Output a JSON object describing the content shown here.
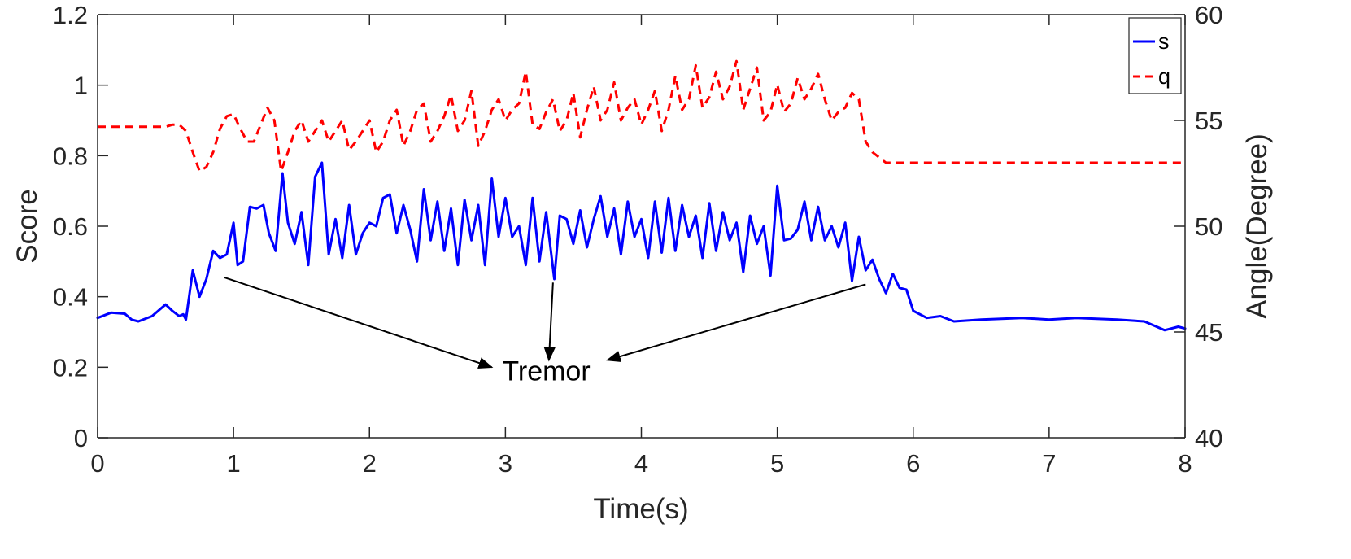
{
  "chart_data": {
    "type": "line",
    "xlabel": "Time(s)",
    "ylabel_left": "Score",
    "ylabel_right": "Angle(Degree)",
    "xlim": [
      0,
      8
    ],
    "ylim_left": [
      0,
      1.2
    ],
    "ylim_right": [
      40,
      60
    ],
    "x_ticks": [
      "0",
      "1",
      "2",
      "3",
      "4",
      "5",
      "6",
      "7",
      "8"
    ],
    "y_left_ticks": [
      "0",
      "0.2",
      "0.4",
      "0.6",
      "0.8",
      "1",
      "1.2"
    ],
    "y_right_ticks": [
      "40",
      "45",
      "50",
      "55",
      "60"
    ],
    "grid": false,
    "legend_position": "top-right",
    "series": [
      {
        "name": "s",
        "axis": "left",
        "color": "#0000ff",
        "style": "solid",
        "points": [
          [
            0.0,
            0.34
          ],
          [
            0.1,
            0.355
          ],
          [
            0.2,
            0.352
          ],
          [
            0.25,
            0.335
          ],
          [
            0.3,
            0.33
          ],
          [
            0.4,
            0.345
          ],
          [
            0.5,
            0.378
          ],
          [
            0.55,
            0.36
          ],
          [
            0.6,
            0.345
          ],
          [
            0.63,
            0.35
          ],
          [
            0.65,
            0.335
          ],
          [
            0.7,
            0.475
          ],
          [
            0.75,
            0.4
          ],
          [
            0.8,
            0.45
          ],
          [
            0.85,
            0.53
          ],
          [
            0.9,
            0.51
          ],
          [
            0.95,
            0.52
          ],
          [
            1.0,
            0.61
          ],
          [
            1.03,
            0.49
          ],
          [
            1.07,
            0.5
          ],
          [
            1.12,
            0.655
          ],
          [
            1.17,
            0.65
          ],
          [
            1.22,
            0.66
          ],
          [
            1.26,
            0.58
          ],
          [
            1.31,
            0.53
          ],
          [
            1.36,
            0.75
          ],
          [
            1.4,
            0.61
          ],
          [
            1.45,
            0.55
          ],
          [
            1.5,
            0.64
          ],
          [
            1.55,
            0.49
          ],
          [
            1.6,
            0.74
          ],
          [
            1.65,
            0.78
          ],
          [
            1.7,
            0.52
          ],
          [
            1.75,
            0.62
          ],
          [
            1.8,
            0.51
          ],
          [
            1.85,
            0.66
          ],
          [
            1.9,
            0.52
          ],
          [
            1.95,
            0.58
          ],
          [
            2.0,
            0.61
          ],
          [
            2.05,
            0.6
          ],
          [
            2.1,
            0.68
          ],
          [
            2.15,
            0.69
          ],
          [
            2.2,
            0.58
          ],
          [
            2.25,
            0.66
          ],
          [
            2.3,
            0.59
          ],
          [
            2.35,
            0.5
          ],
          [
            2.4,
            0.705
          ],
          [
            2.45,
            0.56
          ],
          [
            2.5,
            0.67
          ],
          [
            2.55,
            0.53
          ],
          [
            2.6,
            0.65
          ],
          [
            2.65,
            0.49
          ],
          [
            2.7,
            0.675
          ],
          [
            2.75,
            0.56
          ],
          [
            2.8,
            0.66
          ],
          [
            2.85,
            0.49
          ],
          [
            2.9,
            0.735
          ],
          [
            2.95,
            0.57
          ],
          [
            3.0,
            0.68
          ],
          [
            3.05,
            0.57
          ],
          [
            3.1,
            0.6
          ],
          [
            3.15,
            0.49
          ],
          [
            3.2,
            0.68
          ],
          [
            3.25,
            0.5
          ],
          [
            3.3,
            0.64
          ],
          [
            3.36,
            0.45
          ],
          [
            3.4,
            0.63
          ],
          [
            3.45,
            0.62
          ],
          [
            3.5,
            0.55
          ],
          [
            3.55,
            0.645
          ],
          [
            3.6,
            0.54
          ],
          [
            3.65,
            0.62
          ],
          [
            3.7,
            0.685
          ],
          [
            3.75,
            0.57
          ],
          [
            3.8,
            0.65
          ],
          [
            3.85,
            0.52
          ],
          [
            3.9,
            0.67
          ],
          [
            3.95,
            0.57
          ],
          [
            4.0,
            0.62
          ],
          [
            4.05,
            0.51
          ],
          [
            4.1,
            0.67
          ],
          [
            4.15,
            0.525
          ],
          [
            4.2,
            0.68
          ],
          [
            4.25,
            0.53
          ],
          [
            4.3,
            0.66
          ],
          [
            4.35,
            0.57
          ],
          [
            4.4,
            0.63
          ],
          [
            4.45,
            0.51
          ],
          [
            4.5,
            0.665
          ],
          [
            4.55,
            0.53
          ],
          [
            4.6,
            0.64
          ],
          [
            4.65,
            0.56
          ],
          [
            4.7,
            0.61
          ],
          [
            4.75,
            0.47
          ],
          [
            4.8,
            0.63
          ],
          [
            4.85,
            0.55
          ],
          [
            4.9,
            0.6
          ],
          [
            4.95,
            0.46
          ],
          [
            5.0,
            0.715
          ],
          [
            5.05,
            0.56
          ],
          [
            5.1,
            0.565
          ],
          [
            5.15,
            0.59
          ],
          [
            5.2,
            0.67
          ],
          [
            5.25,
            0.56
          ],
          [
            5.3,
            0.655
          ],
          [
            5.35,
            0.56
          ],
          [
            5.4,
            0.6
          ],
          [
            5.45,
            0.54
          ],
          [
            5.5,
            0.61
          ],
          [
            5.55,
            0.445
          ],
          [
            5.6,
            0.57
          ],
          [
            5.65,
            0.475
          ],
          [
            5.7,
            0.505
          ],
          [
            5.75,
            0.45
          ],
          [
            5.8,
            0.41
          ],
          [
            5.85,
            0.465
          ],
          [
            5.9,
            0.425
          ],
          [
            5.95,
            0.42
          ],
          [
            6.0,
            0.36
          ],
          [
            6.1,
            0.34
          ],
          [
            6.2,
            0.345
          ],
          [
            6.3,
            0.33
          ],
          [
            6.5,
            0.335
          ],
          [
            6.8,
            0.34
          ],
          [
            7.0,
            0.335
          ],
          [
            7.2,
            0.34
          ],
          [
            7.5,
            0.335
          ],
          [
            7.7,
            0.33
          ],
          [
            7.85,
            0.305
          ],
          [
            7.95,
            0.315
          ],
          [
            8.0,
            0.31
          ]
        ]
      },
      {
        "name": "q",
        "axis": "right",
        "color": "#ff0000",
        "style": "dashed",
        "points": [
          [
            0.0,
            54.7
          ],
          [
            0.5,
            54.7
          ],
          [
            0.55,
            54.8
          ],
          [
            0.6,
            54.8
          ],
          [
            0.65,
            54.5
          ],
          [
            0.7,
            53.5
          ],
          [
            0.75,
            52.6
          ],
          [
            0.8,
            52.8
          ],
          [
            0.85,
            53.5
          ],
          [
            0.9,
            54.6
          ],
          [
            0.95,
            55.2
          ],
          [
            1.0,
            55.3
          ],
          [
            1.05,
            54.6
          ],
          [
            1.1,
            54.0
          ],
          [
            1.15,
            54.0
          ],
          [
            1.2,
            54.8
          ],
          [
            1.25,
            55.6
          ],
          [
            1.3,
            55.0
          ],
          [
            1.35,
            52.6
          ],
          [
            1.4,
            53.5
          ],
          [
            1.45,
            54.5
          ],
          [
            1.5,
            55.0
          ],
          [
            1.55,
            54.0
          ],
          [
            1.6,
            54.5
          ],
          [
            1.65,
            55.0
          ],
          [
            1.7,
            54.0
          ],
          [
            1.75,
            54.5
          ],
          [
            1.8,
            55.0
          ],
          [
            1.85,
            53.6
          ],
          [
            1.9,
            54.0
          ],
          [
            1.95,
            54.5
          ],
          [
            2.0,
            55.0
          ],
          [
            2.05,
            53.5
          ],
          [
            2.1,
            54.0
          ],
          [
            2.15,
            55.0
          ],
          [
            2.2,
            55.5
          ],
          [
            2.25,
            53.8
          ],
          [
            2.3,
            54.5
          ],
          [
            2.35,
            55.5
          ],
          [
            2.4,
            55.8
          ],
          [
            2.45,
            54.0
          ],
          [
            2.5,
            54.5
          ],
          [
            2.55,
            55.2
          ],
          [
            2.6,
            56.2
          ],
          [
            2.65,
            54.5
          ],
          [
            2.7,
            55.0
          ],
          [
            2.75,
            56.4
          ],
          [
            2.8,
            53.8
          ],
          [
            2.85,
            54.5
          ],
          [
            2.9,
            55.5
          ],
          [
            2.95,
            56.0
          ],
          [
            3.0,
            55.0
          ],
          [
            3.05,
            55.5
          ],
          [
            3.1,
            55.8
          ],
          [
            3.15,
            57.3
          ],
          [
            3.2,
            54.8
          ],
          [
            3.25,
            54.6
          ],
          [
            3.3,
            55.4
          ],
          [
            3.35,
            56.0
          ],
          [
            3.4,
            54.5
          ],
          [
            3.45,
            55.0
          ],
          [
            3.5,
            56.3
          ],
          [
            3.55,
            54.2
          ],
          [
            3.6,
            55.5
          ],
          [
            3.65,
            56.6
          ],
          [
            3.7,
            55.0
          ],
          [
            3.75,
            55.5
          ],
          [
            3.8,
            56.8
          ],
          [
            3.85,
            55.0
          ],
          [
            3.9,
            55.6
          ],
          [
            3.95,
            56.0
          ],
          [
            4.0,
            54.8
          ],
          [
            4.05,
            55.5
          ],
          [
            4.1,
            56.4
          ],
          [
            4.15,
            54.5
          ],
          [
            4.2,
            55.5
          ],
          [
            4.25,
            57.1
          ],
          [
            4.3,
            55.5
          ],
          [
            4.35,
            56.0
          ],
          [
            4.4,
            57.6
          ],
          [
            4.45,
            55.6
          ],
          [
            4.5,
            56.1
          ],
          [
            4.55,
            57.3
          ],
          [
            4.6,
            56.0
          ],
          [
            4.65,
            56.6
          ],
          [
            4.7,
            57.8
          ],
          [
            4.75,
            55.5
          ],
          [
            4.8,
            56.5
          ],
          [
            4.85,
            57.5
          ],
          [
            4.9,
            55.0
          ],
          [
            4.95,
            55.4
          ],
          [
            5.0,
            56.7
          ],
          [
            5.05,
            55.4
          ],
          [
            5.1,
            55.8
          ],
          [
            5.15,
            57.0
          ],
          [
            5.2,
            56.0
          ],
          [
            5.25,
            56.5
          ],
          [
            5.3,
            57.2
          ],
          [
            5.35,
            56.0
          ],
          [
            5.4,
            55.0
          ],
          [
            5.45,
            55.4
          ],
          [
            5.5,
            55.6
          ],
          [
            5.55,
            56.3
          ],
          [
            5.6,
            56.0
          ],
          [
            5.65,
            54.0
          ],
          [
            5.7,
            53.5
          ],
          [
            5.8,
            53.0
          ],
          [
            5.9,
            53.0
          ],
          [
            6.0,
            53.0
          ],
          [
            7.0,
            53.0
          ],
          [
            8.0,
            53.0
          ]
        ]
      }
    ],
    "annotations": [
      {
        "text": "Tremor",
        "anchor": [
          3.3,
          0.19
        ],
        "arrows": [
          {
            "from": [
              0.93,
              0.455
            ],
            "to": [
              2.9,
              0.2
            ]
          },
          {
            "from": [
              3.35,
              0.44
            ],
            "to": [
              3.32,
              0.22
            ]
          },
          {
            "from": [
              5.65,
              0.435
            ],
            "to": [
              3.75,
              0.22
            ]
          }
        ]
      }
    ]
  }
}
